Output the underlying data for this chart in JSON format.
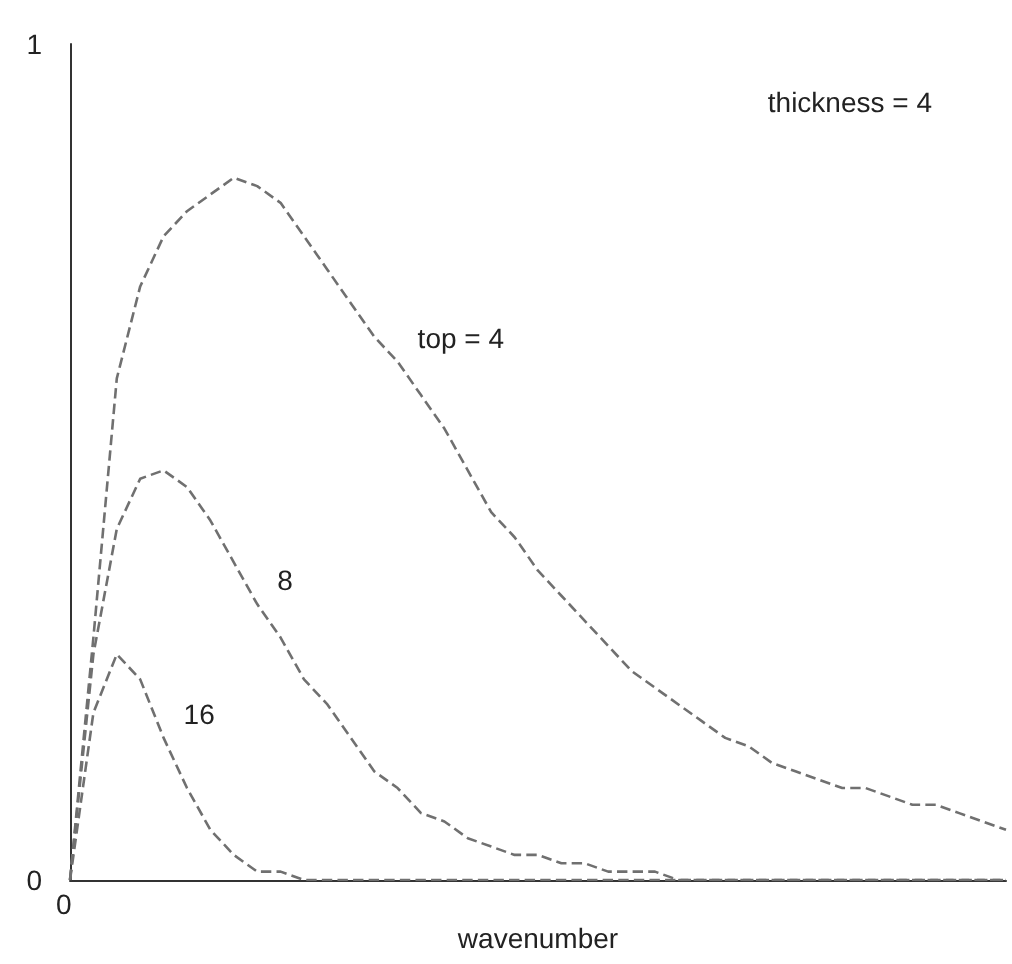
{
  "chart_data": {
    "type": "line",
    "xlabel": "wavenumber",
    "categories": [
      null,
      null,
      null,
      null,
      null,
      null,
      null,
      null,
      null,
      null,
      null,
      null,
      null,
      null,
      null,
      null,
      null,
      null,
      null,
      null,
      null,
      null,
      null,
      null,
      null,
      null,
      null,
      null,
      null,
      null,
      null,
      null,
      null,
      null,
      null,
      null,
      null,
      null,
      null,
      null,
      null
    ],
    "ylim": [
      0,
      1
    ],
    "yticks": [
      0,
      1
    ],
    "grid": false,
    "legend": false,
    "marker": "none",
    "line_style": "dashed",
    "annotations": [
      "thickness = 4",
      "0"
    ],
    "series": [
      {
        "name": "top = 4",
        "color": "#707070",
        "values": [
          0,
          0.29,
          0.6,
          0.71,
          0.77,
          0.8,
          0.82,
          0.84,
          0.83,
          0.81,
          0.77,
          0.73,
          0.69,
          0.65,
          0.62,
          0.58,
          0.54,
          0.49,
          0.44,
          0.41,
          0.37,
          0.34,
          0.31,
          0.28,
          0.25,
          0.23,
          0.21,
          0.19,
          0.17,
          0.16,
          0.14,
          0.13,
          0.12,
          0.11,
          0.11,
          0.1,
          0.09,
          0.09,
          0.08,
          0.07,
          0.06
        ]
      },
      {
        "name": "8",
        "color": "#707070",
        "values": [
          0,
          0.27,
          0.42,
          0.48,
          0.49,
          0.47,
          0.43,
          0.38,
          0.33,
          0.29,
          0.24,
          0.21,
          0.17,
          0.13,
          0.11,
          0.08,
          0.07,
          0.05,
          0.04,
          0.03,
          0.03,
          0.02,
          0.02,
          0.01,
          0.01,
          0.01,
          0,
          0,
          0,
          0,
          0,
          0,
          0,
          0,
          0,
          0,
          0,
          0,
          0,
          0,
          0
        ]
      },
      {
        "name": "16",
        "color": "#707070",
        "values": [
          0,
          0.2,
          0.27,
          0.24,
          0.17,
          0.11,
          0.06,
          0.03,
          0.01,
          0.01,
          0,
          0,
          0,
          0,
          0,
          0,
          0,
          0,
          0,
          0,
          0,
          0,
          0,
          0,
          0,
          0,
          0,
          0,
          0,
          0,
          0,
          0,
          0,
          0,
          0,
          0,
          0,
          0,
          0,
          0,
          0
        ]
      }
    ]
  }
}
